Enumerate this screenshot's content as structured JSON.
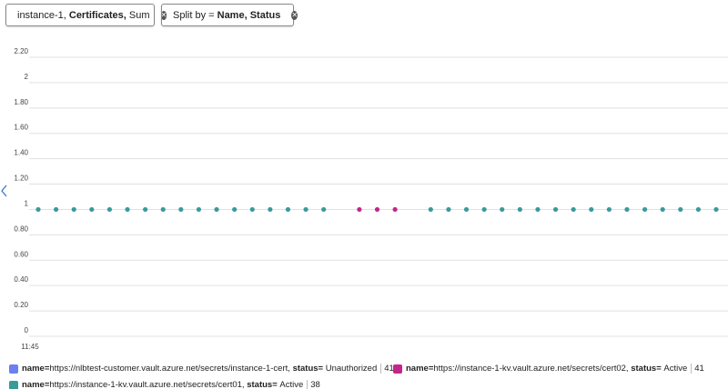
{
  "metric_pill": {
    "resource": "instance-1,",
    "metric": "Certificates,",
    "aggregation": "Sum"
  },
  "split_pill": {
    "prefix": "Split by =",
    "fields": "Name, Status"
  },
  "chart_data": {
    "type": "scatter",
    "categories": [
      "11:45",
      null,
      null,
      null,
      null,
      null,
      null,
      null,
      null,
      null,
      null,
      null,
      null,
      null,
      null,
      null,
      null,
      null,
      null,
      null,
      null,
      null,
      null,
      null,
      null,
      null,
      null,
      null,
      null,
      null,
      null,
      null,
      null,
      null,
      null,
      null,
      null,
      null,
      null
    ],
    "ylim": [
      0,
      2.2
    ],
    "yticks": [
      0,
      {
        "value": 0.2,
        "label": "0.20"
      },
      {
        "value": 0.4,
        "label": "0.40"
      },
      {
        "value": 0.6,
        "label": "0.60"
      },
      {
        "value": 0.8,
        "label": "0.80"
      },
      1,
      {
        "value": 1.2,
        "label": "1.20"
      },
      {
        "value": 1.4,
        "label": "1.40"
      },
      {
        "value": 1.6,
        "label": "1.60"
      },
      {
        "value": 1.8,
        "label": "1.80"
      },
      2,
      {
        "value": 2.2,
        "label": "2.20"
      }
    ],
    "grid": true,
    "legend_keys": {
      "name": "name=",
      "status": "status="
    },
    "series": [
      {
        "name": "https://nlbtest-customer.vault.azure.net/secrets/instance-1-cert,",
        "status": "Unauthorized",
        "total": 41,
        "color": "#6b7ff0",
        "values": [
          null,
          null,
          null,
          null,
          null,
          null,
          null,
          null,
          null,
          null,
          null,
          null,
          null,
          null,
          null,
          null,
          null,
          null,
          null,
          null,
          null,
          null,
          null,
          null,
          null,
          null,
          null,
          null,
          null,
          null,
          null,
          null,
          null,
          null,
          null,
          null,
          null,
          null,
          null
        ]
      },
      {
        "name": "https://instance-1-kv.vault.azure.net/secrets/cert02,",
        "status": "Active",
        "total": 41,
        "color": "#c3268a",
        "values": [
          null,
          null,
          null,
          null,
          null,
          null,
          null,
          null,
          null,
          null,
          null,
          null,
          null,
          null,
          null,
          null,
          null,
          null,
          1,
          1,
          1,
          null,
          null,
          null,
          null,
          null,
          null,
          null,
          null,
          null,
          null,
          null,
          null,
          null,
          null,
          null,
          null,
          null,
          null
        ]
      },
      {
        "name": "https://instance-1-kv.vault.azure.net/secrets/cert01,",
        "status": "Active",
        "total": 38,
        "color": "#3a9a9a",
        "values": [
          1,
          1,
          1,
          1,
          1,
          1,
          1,
          1,
          1,
          1,
          1,
          1,
          1,
          1,
          1,
          1,
          1,
          null,
          null,
          null,
          null,
          null,
          1,
          1,
          1,
          1,
          1,
          1,
          1,
          1,
          1,
          1,
          1,
          1,
          1,
          1,
          1,
          1,
          1
        ]
      }
    ]
  }
}
